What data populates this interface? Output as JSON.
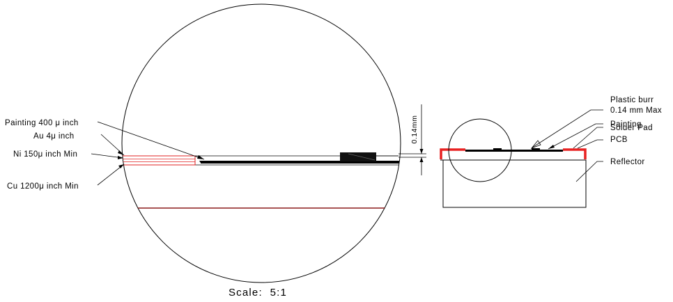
{
  "detail_view": {
    "labels": {
      "painting": "Painting 400 μ inch",
      "au": "Au 4μ inch",
      "ni": "Ni 150μ inch Min",
      "cu": "Cu 1200μ inch Min"
    },
    "dimension": "0.14mm",
    "scale": "Scale:  5:1"
  },
  "side_view": {
    "labels": {
      "plastic_burr": "Plastic burr",
      "burr_max": "0.14 mm Max",
      "painting": "Painting",
      "solder_pad": "Solder Pad",
      "pcb": "PCB",
      "reflector": "Reflector"
    }
  },
  "colors": {
    "line": "#000000",
    "plating": "#e02020",
    "reflector_edge": "#8b1a1a",
    "solder_pad": "#e82020"
  }
}
